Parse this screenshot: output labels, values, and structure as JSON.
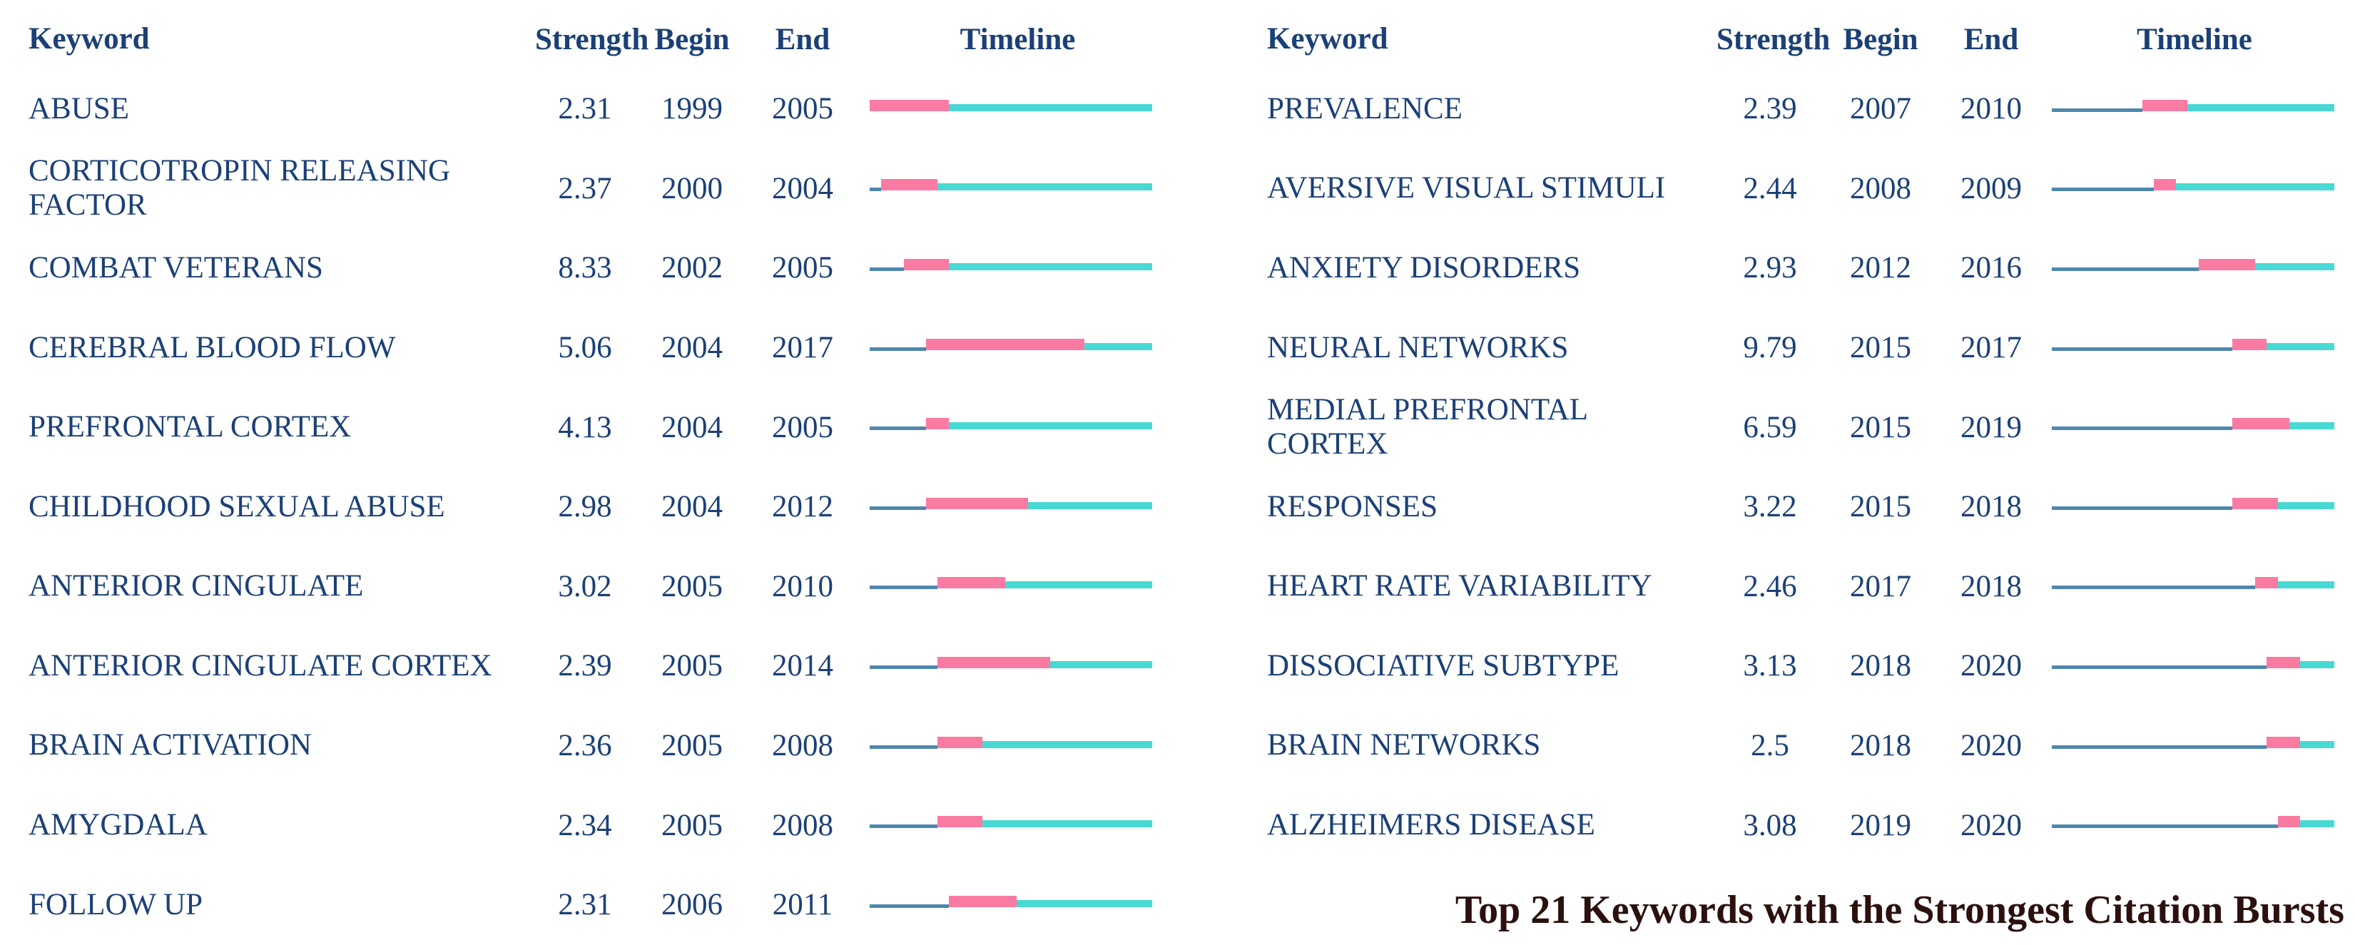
{
  "title": "Top 21 Keywords with the Strongest Citation Bursts",
  "headers": {
    "keyword": "Keyword",
    "strength": "Strength",
    "begin": "Begin",
    "end": "End",
    "timeline": "Timeline"
  },
  "colors": {
    "background": "#FFFFFF",
    "text": "#1B4077",
    "burst": "#FA7BA2",
    "post_burst": "#49D9D4",
    "pre_burst_line": "#4E87AE",
    "title_text": "#2B100E"
  },
  "layout_split_index": 11,
  "chart_data": {
    "type": "table",
    "title": "Top 21 Keywords with the Strongest Citation Bursts",
    "columns": [
      "Keyword",
      "Strength",
      "Begin",
      "End",
      "Timeline"
    ],
    "timeline_axis": {
      "min_year": 1999,
      "max_year": 2023
    },
    "timeline_segments": {
      "pre_burst": "thin steel-blue line from min_year to begin",
      "burst": "pink bar from begin through end",
      "post_burst": "teal bar from end+1 to max_year"
    },
    "rows": [
      {
        "keyword": "ABUSE",
        "strength": 2.31,
        "begin": 1999,
        "end": 2005
      },
      {
        "keyword": "CORTICOTROPIN RELEASING FACTOR",
        "strength": 2.37,
        "begin": 2000,
        "end": 2004
      },
      {
        "keyword": "COMBAT VETERANS",
        "strength": 8.33,
        "begin": 2002,
        "end": 2005
      },
      {
        "keyword": "CEREBRAL BLOOD FLOW",
        "strength": 5.06,
        "begin": 2004,
        "end": 2017
      },
      {
        "keyword": "PREFRONTAL CORTEX",
        "strength": 4.13,
        "begin": 2004,
        "end": 2005
      },
      {
        "keyword": "CHILDHOOD SEXUAL ABUSE",
        "strength": 2.98,
        "begin": 2004,
        "end": 2012
      },
      {
        "keyword": "ANTERIOR CINGULATE",
        "strength": 3.02,
        "begin": 2005,
        "end": 2010
      },
      {
        "keyword": "ANTERIOR CINGULATE CORTEX",
        "strength": 2.39,
        "begin": 2005,
        "end": 2014
      },
      {
        "keyword": "BRAIN ACTIVATION",
        "strength": 2.36,
        "begin": 2005,
        "end": 2008
      },
      {
        "keyword": "AMYGDALA",
        "strength": 2.34,
        "begin": 2005,
        "end": 2008
      },
      {
        "keyword": "FOLLOW UP",
        "strength": 2.31,
        "begin": 2006,
        "end": 2011
      },
      {
        "keyword": "PREVALENCE",
        "strength": 2.39,
        "begin": 2007,
        "end": 2010
      },
      {
        "keyword": "AVERSIVE VISUAL STIMULI",
        "strength": 2.44,
        "begin": 2008,
        "end": 2009
      },
      {
        "keyword": "ANXIETY DISORDERS",
        "strength": 2.93,
        "begin": 2012,
        "end": 2016
      },
      {
        "keyword": "NEURAL NETWORKS",
        "strength": 9.79,
        "begin": 2015,
        "end": 2017
      },
      {
        "keyword": "MEDIAL PREFRONTAL CORTEX",
        "strength": 6.59,
        "begin": 2015,
        "end": 2019
      },
      {
        "keyword": "RESPONSES",
        "strength": 3.22,
        "begin": 2015,
        "end": 2018
      },
      {
        "keyword": "HEART RATE VARIABILITY",
        "strength": 2.46,
        "begin": 2017,
        "end": 2018
      },
      {
        "keyword": "DISSOCIATIVE SUBTYPE",
        "strength": 3.13,
        "begin": 2018,
        "end": 2020
      },
      {
        "keyword": "BRAIN NETWORKS",
        "strength": 2.5,
        "begin": 2018,
        "end": 2020
      },
      {
        "keyword": "ALZHEIMERS DISEASE",
        "strength": 3.08,
        "begin": 2019,
        "end": 2020
      }
    ]
  }
}
